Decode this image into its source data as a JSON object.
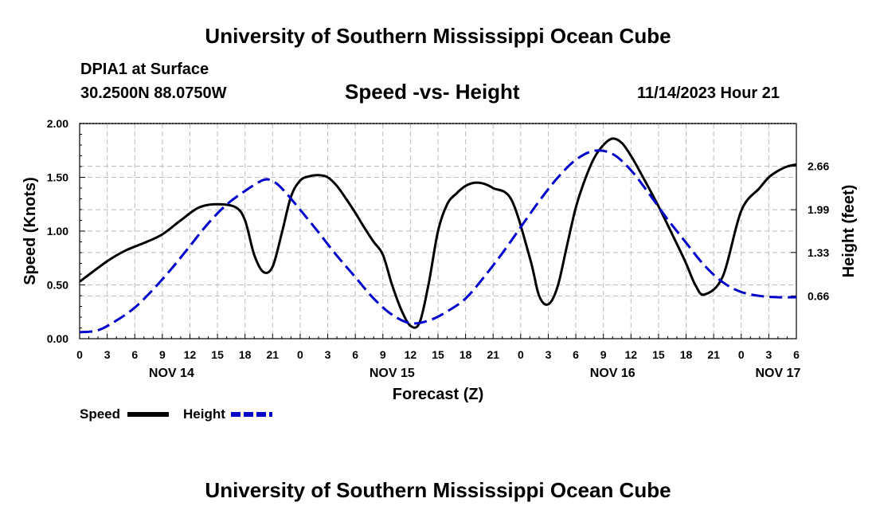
{
  "header": {
    "title": "University of Southern Mississippi Ocean Cube",
    "station": "DPIA1 at Surface",
    "location": "30.2500N  88.0750W",
    "datetime": "11/14/2023 Hour 21"
  },
  "footer": {
    "title": "University of Southern Mississippi Ocean Cube"
  },
  "chart_data": {
    "type": "line",
    "title": "Speed -vs- Height",
    "xlabel": "Forecast (Z)",
    "ylabel": "Speed (Knots)",
    "y2label": "Height (feet)",
    "ylim": [
      0,
      2
    ],
    "y2lim": [
      0,
      3.32
    ],
    "xlim": [
      0,
      78
    ],
    "y_ticks": [
      "0.00",
      "0.50",
      "1.00",
      "1.50",
      "2.00"
    ],
    "y2_ticks": [
      "0.66",
      "1.33",
      "1.99",
      "2.66"
    ],
    "y2_tick_values": [
      0.66,
      1.33,
      1.99,
      2.66
    ],
    "x_tick_labels": [
      "0",
      "3",
      "6",
      "9",
      "12",
      "15",
      "18",
      "21",
      "0",
      "3",
      "6",
      "9",
      "12",
      "15",
      "18",
      "21",
      "0",
      "3",
      "6",
      "9",
      "12",
      "15",
      "18",
      "21",
      "0",
      "3",
      "6"
    ],
    "date_labels": [
      {
        "label": "NOV 14",
        "hour": 10
      },
      {
        "label": "NOV 15",
        "hour": 34
      },
      {
        "label": "NOV 16",
        "hour": 58
      },
      {
        "label": "NOV 17",
        "hour": 76
      }
    ],
    "legend": {
      "placement": "bottom-left",
      "speed_label": "Speed",
      "height_label": "Height"
    },
    "colors": {
      "speed": "#000000",
      "height": "#0000cc",
      "grid": "#bbbbbb"
    },
    "grid": true,
    "series": [
      {
        "name": "Speed",
        "axis": "left",
        "x": [
          0,
          3,
          5,
          7,
          9,
          11,
          13,
          15,
          17,
          18,
          19,
          20,
          21,
          22,
          23,
          24,
          25,
          26,
          27,
          28,
          29,
          30,
          31,
          32,
          33,
          34,
          35,
          36,
          37,
          38,
          39,
          40,
          41,
          42,
          43,
          44,
          45,
          47,
          49,
          50,
          51,
          52,
          53,
          54,
          55,
          56,
          57,
          58,
          59,
          60,
          61,
          63,
          65,
          66,
          67,
          68,
          70,
          72,
          74,
          75,
          76,
          77,
          78
        ],
        "values": [
          0.53,
          0.72,
          0.82,
          0.89,
          0.97,
          1.1,
          1.22,
          1.25,
          1.22,
          1.1,
          0.78,
          0.62,
          0.67,
          0.98,
          1.32,
          1.47,
          1.51,
          1.52,
          1.5,
          1.42,
          1.3,
          1.17,
          1.03,
          0.9,
          0.78,
          0.5,
          0.27,
          0.12,
          0.15,
          0.52,
          1.0,
          1.25,
          1.35,
          1.42,
          1.45,
          1.44,
          1.4,
          1.29,
          0.75,
          0.4,
          0.32,
          0.48,
          0.85,
          1.22,
          1.48,
          1.68,
          1.8,
          1.86,
          1.82,
          1.7,
          1.55,
          1.23,
          0.88,
          0.7,
          0.5,
          0.41,
          0.58,
          1.19,
          1.4,
          1.5,
          1.56,
          1.6,
          1.62
        ]
      },
      {
        "name": "Height",
        "axis": "right",
        "x": [
          0,
          2,
          4,
          6,
          8,
          10,
          12,
          14,
          16,
          18,
          20,
          21,
          22,
          24,
          26,
          28,
          30,
          32,
          34,
          36,
          38,
          40,
          42,
          44,
          46,
          48,
          50,
          52,
          54,
          56,
          58,
          60,
          62,
          64,
          66,
          68,
          70,
          72,
          74,
          76,
          78
        ],
        "values": [
          0.1,
          0.13,
          0.28,
          0.48,
          0.76,
          1.08,
          1.43,
          1.78,
          2.07,
          2.28,
          2.45,
          2.43,
          2.32,
          1.99,
          1.64,
          1.28,
          0.95,
          0.62,
          0.37,
          0.24,
          0.28,
          0.42,
          0.62,
          0.95,
          1.32,
          1.72,
          2.12,
          2.48,
          2.76,
          2.9,
          2.85,
          2.6,
          2.23,
          1.84,
          1.48,
          1.13,
          0.87,
          0.72,
          0.66,
          0.64,
          0.64
        ]
      }
    ]
  }
}
